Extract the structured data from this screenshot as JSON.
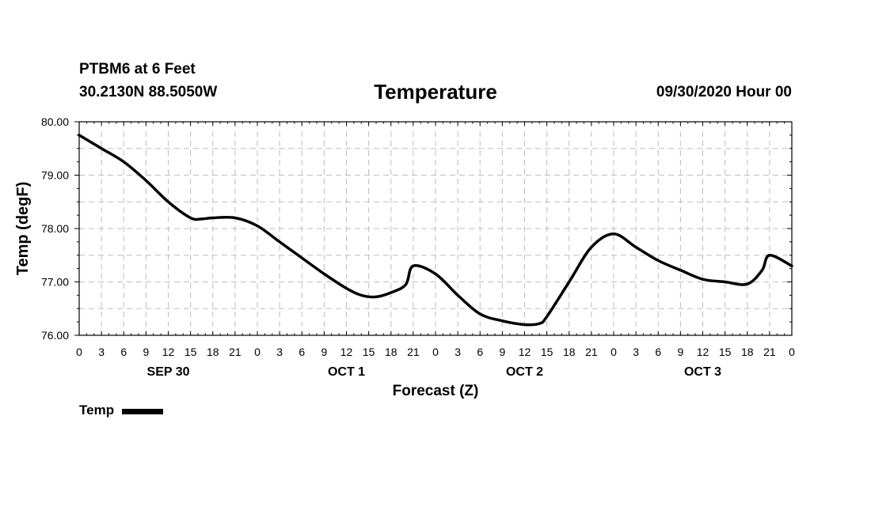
{
  "header": {
    "station": "PTBM6 at 6 Feet",
    "coords": "30.2130N 88.5050W",
    "title": "Temperature",
    "datetime": "09/30/2020 Hour 00"
  },
  "chart_data": {
    "type": "line",
    "title": "Temperature",
    "xlabel": "Forecast (Z)",
    "ylabel": "Temp (degF)",
    "xlim": [
      0,
      96
    ],
    "ylim": [
      76.0,
      80.0
    ],
    "x_tick_labels": [
      "0",
      "3",
      "6",
      "9",
      "12",
      "15",
      "18",
      "21",
      "0",
      "3",
      "6",
      "9",
      "12",
      "15",
      "18",
      "21",
      "0",
      "3",
      "6",
      "9",
      "12",
      "15",
      "18",
      "21",
      "0",
      "3",
      "6",
      "9",
      "12",
      "15",
      "18",
      "21",
      "0"
    ],
    "y_tick_labels": [
      "76.00",
      "77.00",
      "78.00",
      "79.00",
      "80.00"
    ],
    "y_ticks": [
      76,
      77,
      78,
      79,
      80
    ],
    "day_labels": [
      {
        "label": "SEP 30",
        "hour": 12
      },
      {
        "label": "OCT 1",
        "hour": 36
      },
      {
        "label": "OCT 2",
        "hour": 60
      },
      {
        "label": "OCT 3",
        "hour": 84
      }
    ],
    "grid": true,
    "legend_position": "bottom-left",
    "series": [
      {
        "name": "Temp",
        "color": "#000000",
        "x": [
          0,
          3,
          6,
          9,
          12,
          15,
          16.5,
          18,
          21,
          24,
          27,
          30,
          33,
          36,
          38,
          40,
          42,
          44,
          45,
          48,
          51,
          54,
          57,
          60,
          62,
          63,
          66,
          69,
          72,
          75,
          78,
          81,
          84,
          87,
          90,
          92,
          93,
          96
        ],
        "values": [
          79.75,
          79.5,
          79.25,
          78.9,
          78.5,
          78.2,
          78.18,
          78.2,
          78.2,
          78.05,
          77.75,
          77.45,
          77.15,
          76.88,
          76.75,
          76.72,
          76.8,
          76.95,
          77.3,
          77.15,
          76.75,
          76.4,
          76.27,
          76.2,
          76.22,
          76.35,
          77.0,
          77.65,
          77.9,
          77.65,
          77.4,
          77.22,
          77.05,
          77.0,
          76.96,
          77.22,
          77.5,
          77.3
        ]
      }
    ]
  },
  "legend": {
    "label": "Temp",
    "color": "#000000"
  }
}
